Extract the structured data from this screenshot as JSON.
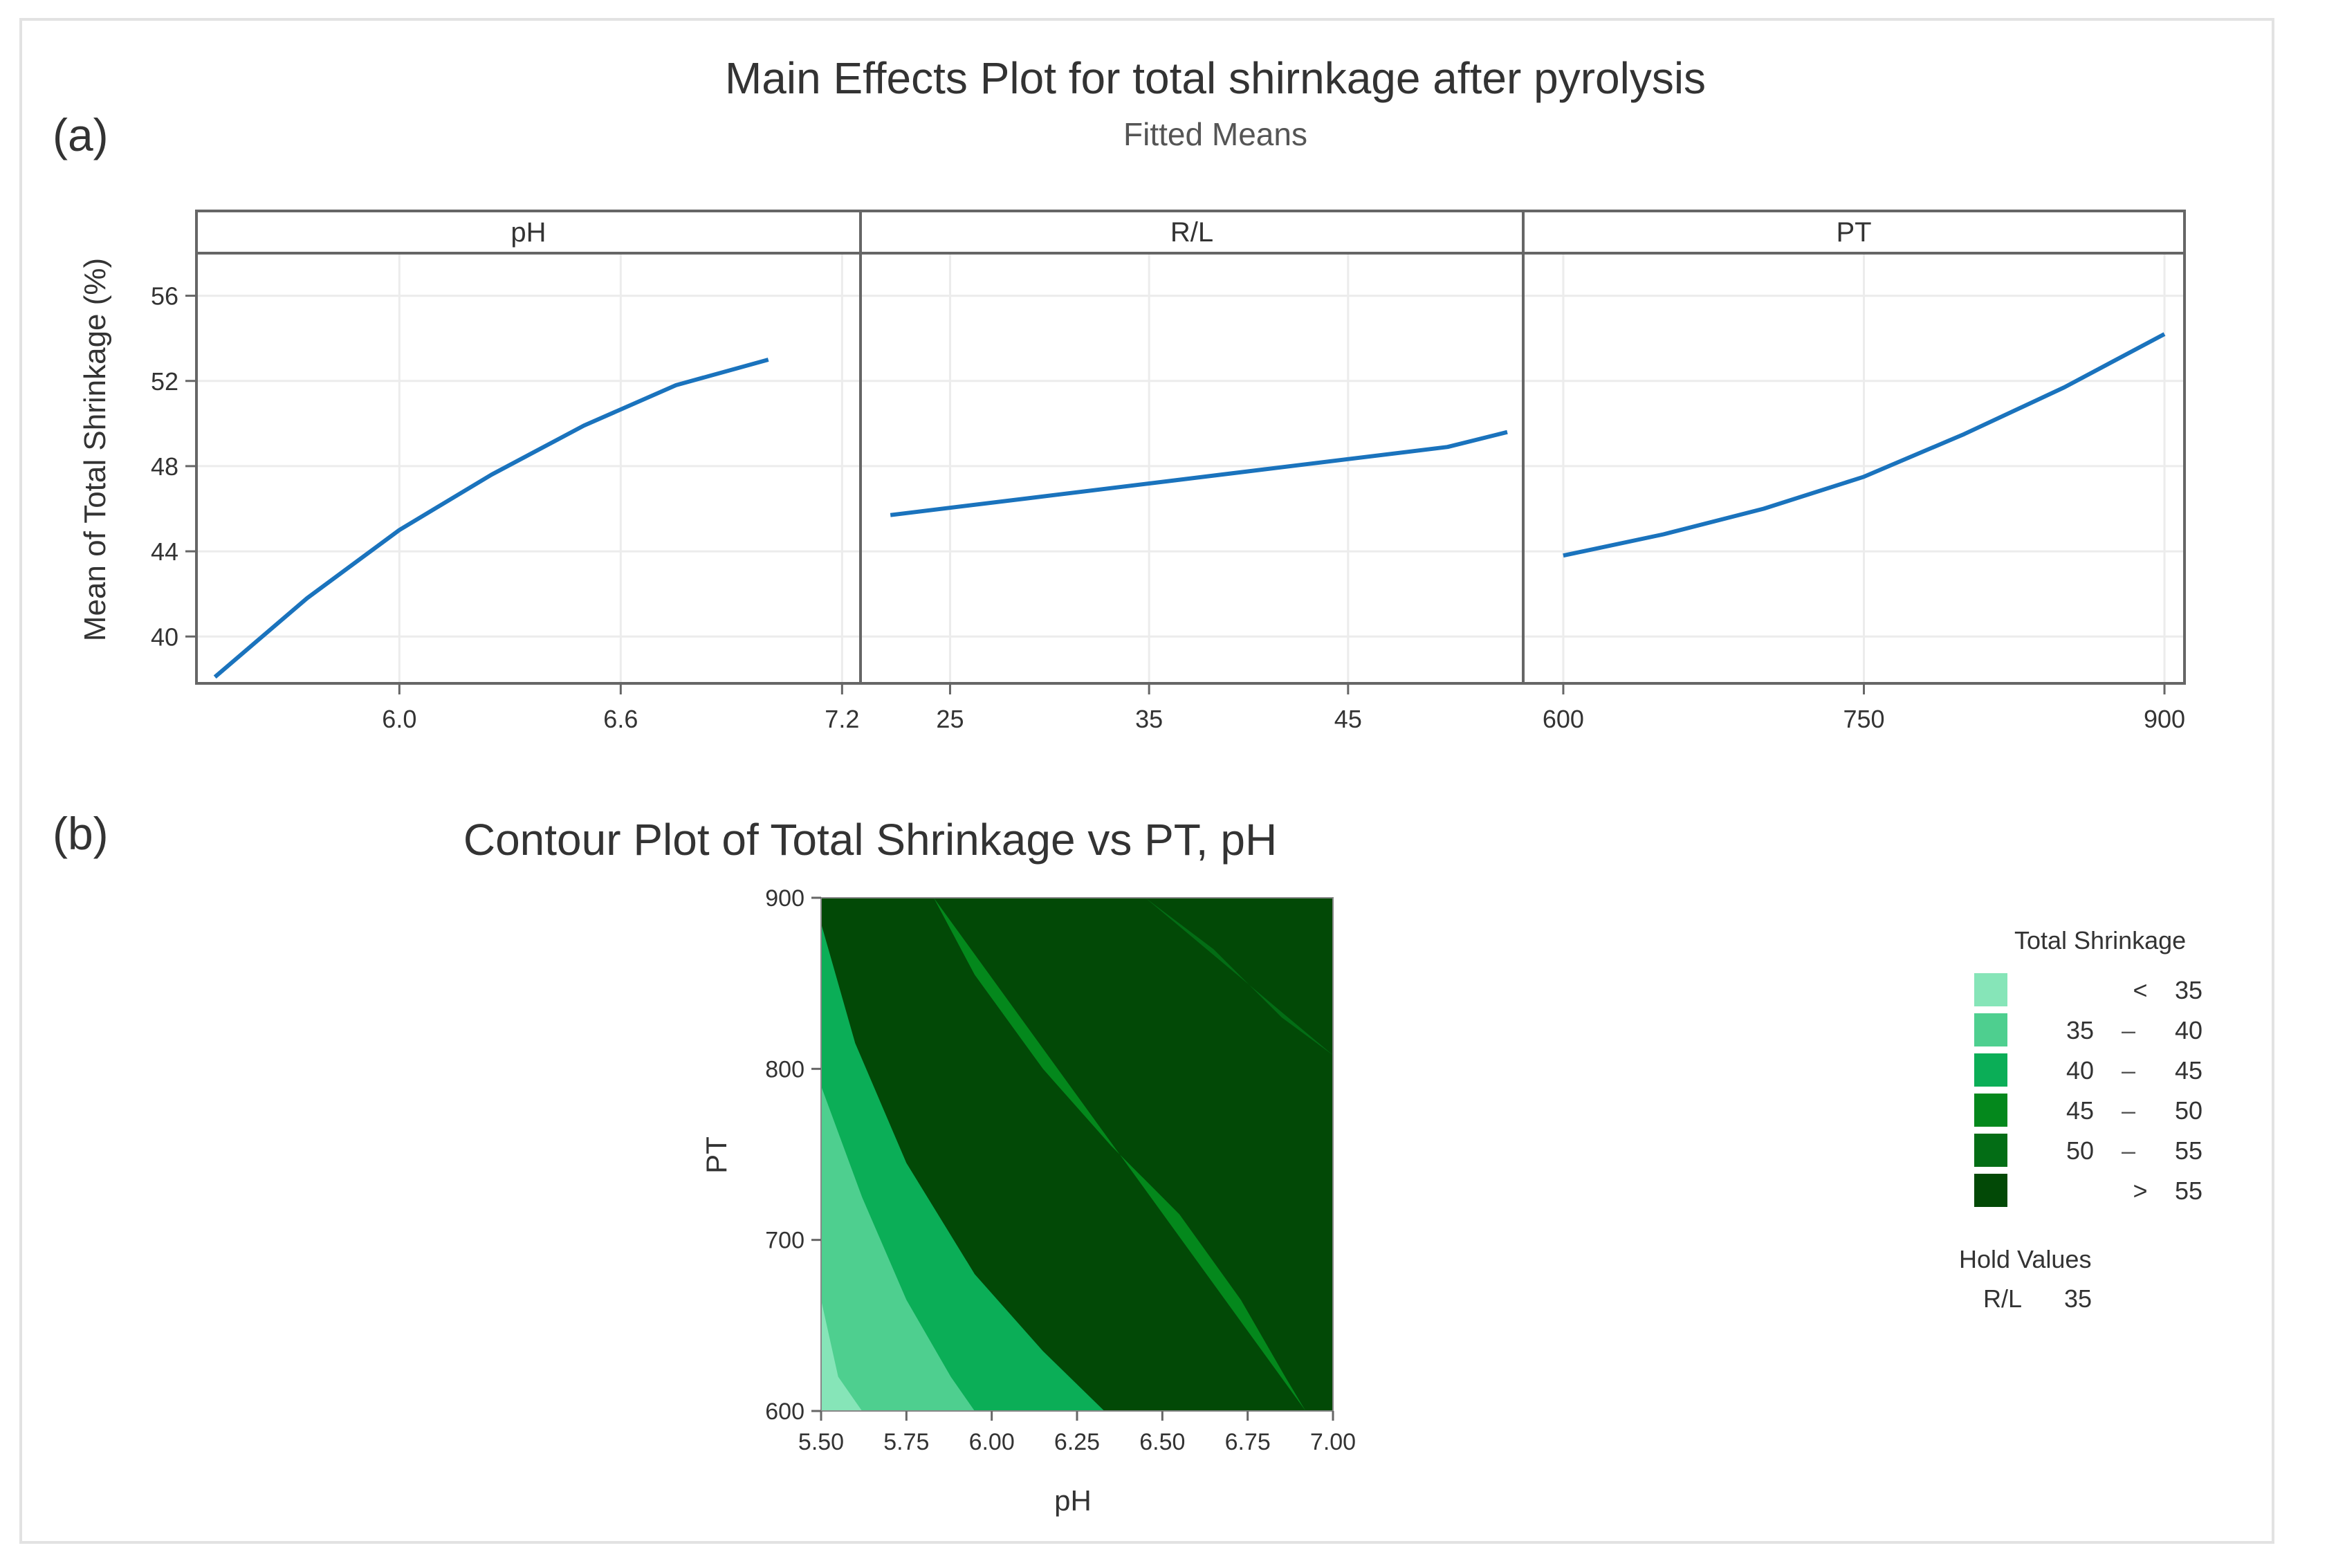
{
  "panel_labels": {
    "a": "(a)",
    "b": "(b)"
  },
  "colors": {
    "line": "#1a73bd",
    "frame": "#666666",
    "grid": "#ececec",
    "text": "#333333",
    "levels": [
      "#86e5b8",
      "#4ecf8f",
      "#0bae57",
      "#04881c",
      "#036d15",
      "#024906"
    ]
  },
  "chart_data": [
    {
      "type": "line",
      "title": "Main Effects Plot for total shirnkage after pyrolysis",
      "subtitle": "Fitted Means",
      "ylabel": "Mean of Total Shrinkage (%)",
      "ylim": [
        37.8,
        58
      ],
      "yticks": [
        40,
        44,
        48,
        52,
        56
      ],
      "grid": true,
      "panels": [
        {
          "name": "pH",
          "xlim": [
            5.45,
            7.25
          ],
          "xticks": [
            "6.0",
            "6.6",
            "7.2"
          ],
          "x": [
            5.5,
            5.75,
            6.0,
            6.25,
            6.5,
            6.75,
            7.0
          ],
          "y": [
            38.1,
            41.8,
            45.0,
            47.6,
            49.9,
            51.8,
            53.0
          ]
        },
        {
          "name": "R/L",
          "xlim": [
            20.5,
            53.8
          ],
          "xticks": [
            "25",
            "35",
            "45"
          ],
          "x": [
            22,
            29,
            36,
            43,
            50,
            53
          ],
          "y": [
            45.7,
            46.5,
            47.3,
            48.1,
            48.9,
            49.6
          ]
        },
        {
          "name": "PT",
          "xlim": [
            580,
            910
          ],
          "xticks": [
            "600",
            "750",
            "900"
          ],
          "x": [
            600,
            650,
            700,
            750,
            800,
            850,
            900
          ],
          "y": [
            43.8,
            44.8,
            46.0,
            47.5,
            49.5,
            51.7,
            54.2
          ]
        }
      ]
    },
    {
      "type": "heatmap",
      "title": "Contour Plot of Total Shrinkage vs PT, pH",
      "xlabel": "pH",
      "ylabel": "PT",
      "xlim": [
        5.5,
        7.0
      ],
      "ylim": [
        600,
        900
      ],
      "xticks": [
        "5.50",
        "5.75",
        "6.00",
        "6.25",
        "6.50",
        "6.75",
        "7.00"
      ],
      "yticks": [
        "600",
        "700",
        "800",
        "900"
      ],
      "contour_boundaries": [
        {
          "level": 35,
          "points": [
            [
              5.5,
              665
            ],
            [
              5.55,
              620
            ],
            [
              5.62,
              600
            ]
          ]
        },
        {
          "level": 40,
          "points": [
            [
              5.5,
              790
            ],
            [
              5.62,
              725
            ],
            [
              5.75,
              665
            ],
            [
              5.88,
              620
            ],
            [
              5.95,
              600
            ]
          ]
        },
        {
          "level": 45,
          "points": [
            [
              5.5,
              885
            ],
            [
              5.6,
              815
            ],
            [
              5.75,
              745
            ],
            [
              5.95,
              680
            ],
            [
              6.15,
              635
            ],
            [
              6.33,
              600
            ]
          ]
        },
        {
          "level": 50,
          "points": [
            [
              5.83,
              900
            ],
            [
              5.95,
              855
            ],
            [
              6.15,
              800
            ],
            [
              6.35,
              755
            ],
            [
              6.55,
              715
            ],
            [
              6.73,
              665
            ],
            [
              6.86,
              620
            ],
            [
              6.92,
              600
            ]
          ]
        },
        {
          "level": 55,
          "points": [
            [
              6.45,
              900
            ],
            [
              6.65,
              870
            ],
            [
              6.85,
              830
            ],
            [
              7.0,
              808
            ]
          ]
        }
      ],
      "legend": {
        "title": "Total Shrinkage",
        "entries": [
          {
            "op": "<",
            "lo": "",
            "dash": "",
            "hi": "35"
          },
          {
            "op": "",
            "lo": "35",
            "dash": "–",
            "hi": "40"
          },
          {
            "op": "",
            "lo": "40",
            "dash": "–",
            "hi": "45"
          },
          {
            "op": "",
            "lo": "45",
            "dash": "–",
            "hi": "50"
          },
          {
            "op": "",
            "lo": "50",
            "dash": "–",
            "hi": "55"
          },
          {
            "op": ">",
            "lo": "",
            "dash": "",
            "hi": "55"
          }
        ],
        "placement": "right"
      },
      "hold_values": {
        "title": "Hold Values",
        "name": "R/L",
        "value": "35"
      }
    }
  ]
}
